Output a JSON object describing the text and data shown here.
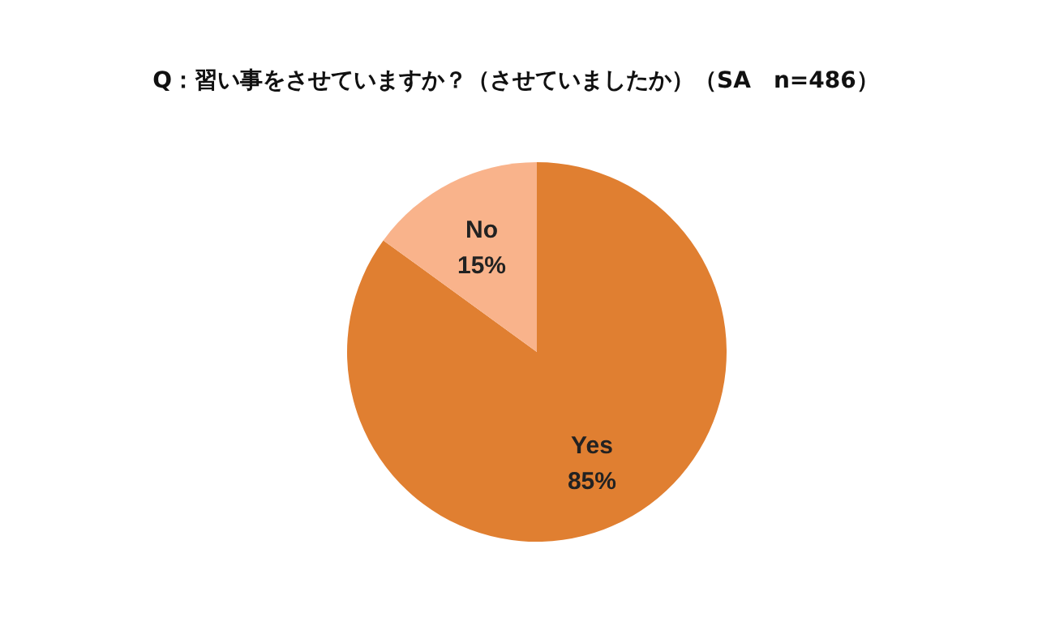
{
  "chart_data": {
    "type": "pie",
    "title": "Q：習い事をさせていますか？（させていましたか）（SA　n=486）",
    "categories": [
      "Yes",
      "No"
    ],
    "values": [
      85,
      15
    ],
    "value_labels": [
      "85%",
      "15%"
    ],
    "colors": [
      "#e07f31",
      "#f9b38b"
    ],
    "legend": false
  }
}
